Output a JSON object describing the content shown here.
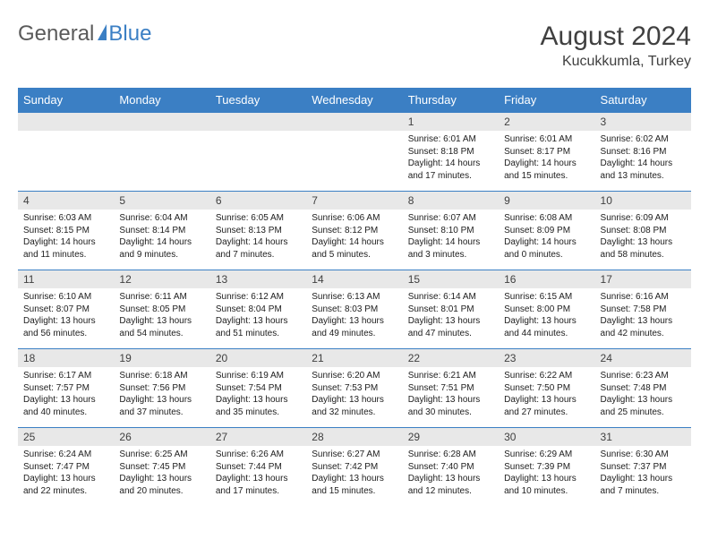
{
  "colors": {
    "brand_blue": "#3b7fc4",
    "header_gray": "#5a5a5a",
    "cell_num_bg": "#e8e8e8",
    "text": "#202020",
    "title_text": "#404040",
    "white": "#ffffff"
  },
  "logo": {
    "part1": "General",
    "part2": "Blue"
  },
  "title": "August 2024",
  "subtitle": "Kucukkumla, Turkey",
  "days_header": [
    "Sunday",
    "Monday",
    "Tuesday",
    "Wednesday",
    "Thursday",
    "Friday",
    "Saturday"
  ],
  "weeks": [
    [
      null,
      null,
      null,
      null,
      {
        "num": "1",
        "sunrise": "Sunrise: 6:01 AM",
        "sunset": "Sunset: 8:18 PM",
        "daylight": "Daylight: 14 hours and 17 minutes."
      },
      {
        "num": "2",
        "sunrise": "Sunrise: 6:01 AM",
        "sunset": "Sunset: 8:17 PM",
        "daylight": "Daylight: 14 hours and 15 minutes."
      },
      {
        "num": "3",
        "sunrise": "Sunrise: 6:02 AM",
        "sunset": "Sunset: 8:16 PM",
        "daylight": "Daylight: 14 hours and 13 minutes."
      }
    ],
    [
      {
        "num": "4",
        "sunrise": "Sunrise: 6:03 AM",
        "sunset": "Sunset: 8:15 PM",
        "daylight": "Daylight: 14 hours and 11 minutes."
      },
      {
        "num": "5",
        "sunrise": "Sunrise: 6:04 AM",
        "sunset": "Sunset: 8:14 PM",
        "daylight": "Daylight: 14 hours and 9 minutes."
      },
      {
        "num": "6",
        "sunrise": "Sunrise: 6:05 AM",
        "sunset": "Sunset: 8:13 PM",
        "daylight": "Daylight: 14 hours and 7 minutes."
      },
      {
        "num": "7",
        "sunrise": "Sunrise: 6:06 AM",
        "sunset": "Sunset: 8:12 PM",
        "daylight": "Daylight: 14 hours and 5 minutes."
      },
      {
        "num": "8",
        "sunrise": "Sunrise: 6:07 AM",
        "sunset": "Sunset: 8:10 PM",
        "daylight": "Daylight: 14 hours and 3 minutes."
      },
      {
        "num": "9",
        "sunrise": "Sunrise: 6:08 AM",
        "sunset": "Sunset: 8:09 PM",
        "daylight": "Daylight: 14 hours and 0 minutes."
      },
      {
        "num": "10",
        "sunrise": "Sunrise: 6:09 AM",
        "sunset": "Sunset: 8:08 PM",
        "daylight": "Daylight: 13 hours and 58 minutes."
      }
    ],
    [
      {
        "num": "11",
        "sunrise": "Sunrise: 6:10 AM",
        "sunset": "Sunset: 8:07 PM",
        "daylight": "Daylight: 13 hours and 56 minutes."
      },
      {
        "num": "12",
        "sunrise": "Sunrise: 6:11 AM",
        "sunset": "Sunset: 8:05 PM",
        "daylight": "Daylight: 13 hours and 54 minutes."
      },
      {
        "num": "13",
        "sunrise": "Sunrise: 6:12 AM",
        "sunset": "Sunset: 8:04 PM",
        "daylight": "Daylight: 13 hours and 51 minutes."
      },
      {
        "num": "14",
        "sunrise": "Sunrise: 6:13 AM",
        "sunset": "Sunset: 8:03 PM",
        "daylight": "Daylight: 13 hours and 49 minutes."
      },
      {
        "num": "15",
        "sunrise": "Sunrise: 6:14 AM",
        "sunset": "Sunset: 8:01 PM",
        "daylight": "Daylight: 13 hours and 47 minutes."
      },
      {
        "num": "16",
        "sunrise": "Sunrise: 6:15 AM",
        "sunset": "Sunset: 8:00 PM",
        "daylight": "Daylight: 13 hours and 44 minutes."
      },
      {
        "num": "17",
        "sunrise": "Sunrise: 6:16 AM",
        "sunset": "Sunset: 7:58 PM",
        "daylight": "Daylight: 13 hours and 42 minutes."
      }
    ],
    [
      {
        "num": "18",
        "sunrise": "Sunrise: 6:17 AM",
        "sunset": "Sunset: 7:57 PM",
        "daylight": "Daylight: 13 hours and 40 minutes."
      },
      {
        "num": "19",
        "sunrise": "Sunrise: 6:18 AM",
        "sunset": "Sunset: 7:56 PM",
        "daylight": "Daylight: 13 hours and 37 minutes."
      },
      {
        "num": "20",
        "sunrise": "Sunrise: 6:19 AM",
        "sunset": "Sunset: 7:54 PM",
        "daylight": "Daylight: 13 hours and 35 minutes."
      },
      {
        "num": "21",
        "sunrise": "Sunrise: 6:20 AM",
        "sunset": "Sunset: 7:53 PM",
        "daylight": "Daylight: 13 hours and 32 minutes."
      },
      {
        "num": "22",
        "sunrise": "Sunrise: 6:21 AM",
        "sunset": "Sunset: 7:51 PM",
        "daylight": "Daylight: 13 hours and 30 minutes."
      },
      {
        "num": "23",
        "sunrise": "Sunrise: 6:22 AM",
        "sunset": "Sunset: 7:50 PM",
        "daylight": "Daylight: 13 hours and 27 minutes."
      },
      {
        "num": "24",
        "sunrise": "Sunrise: 6:23 AM",
        "sunset": "Sunset: 7:48 PM",
        "daylight": "Daylight: 13 hours and 25 minutes."
      }
    ],
    [
      {
        "num": "25",
        "sunrise": "Sunrise: 6:24 AM",
        "sunset": "Sunset: 7:47 PM",
        "daylight": "Daylight: 13 hours and 22 minutes."
      },
      {
        "num": "26",
        "sunrise": "Sunrise: 6:25 AM",
        "sunset": "Sunset: 7:45 PM",
        "daylight": "Daylight: 13 hours and 20 minutes."
      },
      {
        "num": "27",
        "sunrise": "Sunrise: 6:26 AM",
        "sunset": "Sunset: 7:44 PM",
        "daylight": "Daylight: 13 hours and 17 minutes."
      },
      {
        "num": "28",
        "sunrise": "Sunrise: 6:27 AM",
        "sunset": "Sunset: 7:42 PM",
        "daylight": "Daylight: 13 hours and 15 minutes."
      },
      {
        "num": "29",
        "sunrise": "Sunrise: 6:28 AM",
        "sunset": "Sunset: 7:40 PM",
        "daylight": "Daylight: 13 hours and 12 minutes."
      },
      {
        "num": "30",
        "sunrise": "Sunrise: 6:29 AM",
        "sunset": "Sunset: 7:39 PM",
        "daylight": "Daylight: 13 hours and 10 minutes."
      },
      {
        "num": "31",
        "sunrise": "Sunrise: 6:30 AM",
        "sunset": "Sunset: 7:37 PM",
        "daylight": "Daylight: 13 hours and 7 minutes."
      }
    ]
  ]
}
